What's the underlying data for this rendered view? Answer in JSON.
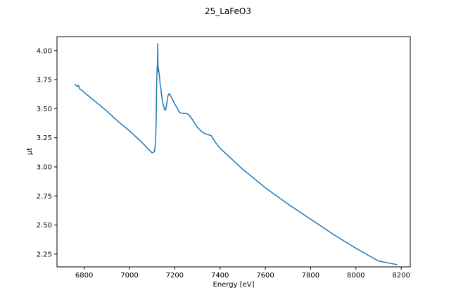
{
  "chart_data": {
    "type": "line",
    "title": "25_LaFeO3",
    "xlabel": "Energy [eV]",
    "ylabel": "μt",
    "xlim": [
      6680,
      8240
    ],
    "ylim": [
      2.14,
      4.12
    ],
    "xticks": [
      6800,
      7000,
      7200,
      7400,
      7600,
      7800,
      8000,
      8200
    ],
    "yticks": [
      2.25,
      2.5,
      2.75,
      3.0,
      3.25,
      3.5,
      3.75,
      4.0
    ],
    "xtick_labels": [
      "6800",
      "7000",
      "7200",
      "7400",
      "7600",
      "7800",
      "8000",
      "8200"
    ],
    "ytick_labels": [
      "2.25",
      "2.50",
      "2.75",
      "3.00",
      "3.25",
      "3.50",
      "3.75",
      "4.00"
    ],
    "grid": false,
    "series": [
      {
        "color": "#1f77b4",
        "x": [
          6760,
          6770,
          6775,
          6780,
          6790,
          6800,
          6850,
          6900,
          6950,
          7000,
          7050,
          7080,
          7100,
          7110,
          7115,
          7118,
          7120,
          7122,
          7124,
          7125,
          7126,
          7127,
          7128,
          7130,
          7132,
          7135,
          7140,
          7145,
          7150,
          7155,
          7160,
          7165,
          7170,
          7175,
          7180,
          7190,
          7200,
          7210,
          7220,
          7230,
          7250,
          7260,
          7270,
          7280,
          7300,
          7320,
          7340,
          7360,
          7370,
          7380,
          7400,
          7450,
          7500,
          7550,
          7600,
          7700,
          7800,
          7900,
          8000,
          8100,
          8180
        ],
        "y": [
          3.71,
          3.69,
          3.7,
          3.67,
          3.66,
          3.64,
          3.56,
          3.48,
          3.39,
          3.31,
          3.22,
          3.16,
          3.12,
          3.13,
          3.2,
          3.4,
          3.7,
          3.83,
          3.9,
          4.06,
          3.88,
          3.82,
          3.85,
          3.81,
          3.79,
          3.72,
          3.65,
          3.57,
          3.53,
          3.49,
          3.49,
          3.55,
          3.61,
          3.63,
          3.62,
          3.58,
          3.54,
          3.51,
          3.47,
          3.46,
          3.46,
          3.45,
          3.43,
          3.4,
          3.34,
          3.3,
          3.28,
          3.27,
          3.24,
          3.21,
          3.16,
          3.07,
          2.98,
          2.9,
          2.82,
          2.68,
          2.55,
          2.42,
          2.3,
          2.19,
          2.16
        ]
      }
    ]
  }
}
